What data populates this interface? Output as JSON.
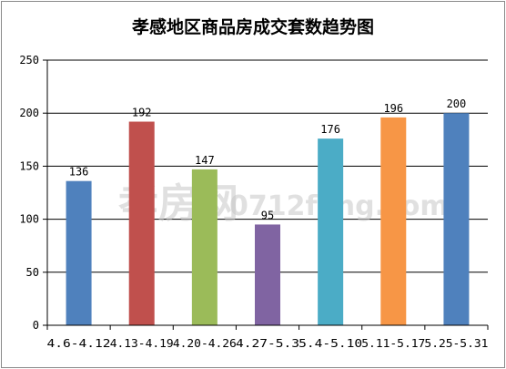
{
  "chart_data": {
    "type": "bar",
    "title": "孝感地区商品房成交套数趋势图",
    "categories": [
      "4.6-4.12",
      "4.13-4.19",
      "4.20-4.26",
      "4.27-5.3",
      "5.4-5.10",
      "5.11-5.17",
      "5.25-5.31"
    ],
    "values": [
      136,
      192,
      147,
      95,
      176,
      196,
      200
    ],
    "colors": [
      "#4f81bd",
      "#c0504d",
      "#9bbb59",
      "#8064a2",
      "#4bacc6",
      "#f79646",
      "#4f81bd"
    ],
    "ylim": [
      0,
      250
    ],
    "yticks": [
      0,
      50,
      100,
      150,
      200,
      250
    ],
    "grid": true,
    "legend": "none",
    "xlabel": "",
    "ylabel": ""
  },
  "watermark": {
    "text_cn": "孝房网",
    "text_url": "0712fang.com"
  }
}
